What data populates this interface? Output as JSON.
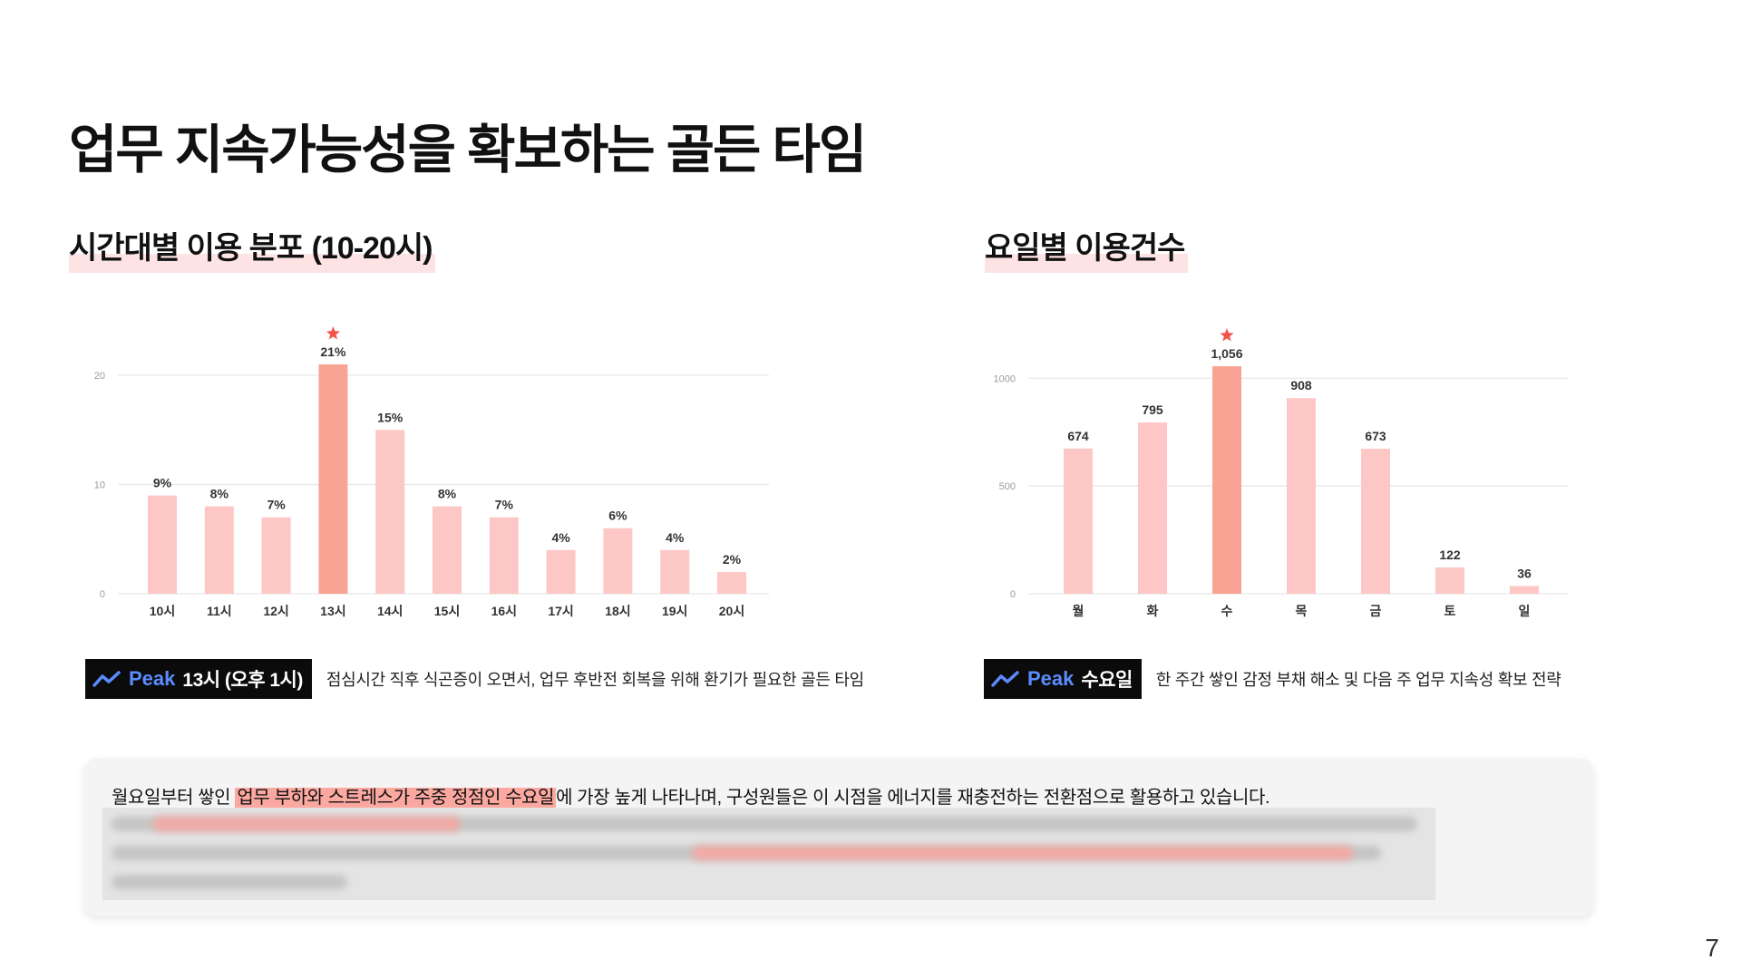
{
  "page": {
    "title": "업무 지속가능성을 확보하는 골든 타임",
    "number": "7"
  },
  "chart_data": [
    {
      "type": "bar",
      "title": "시간대별 이용 분포 (10-20시)",
      "categories": [
        "10시",
        "11시",
        "12시",
        "13시",
        "14시",
        "15시",
        "16시",
        "17시",
        "18시",
        "19시",
        "20시"
      ],
      "values": [
        9,
        8,
        7,
        21,
        15,
        8,
        7,
        4,
        6,
        4,
        2
      ],
      "data_labels": [
        "9%",
        "8%",
        "7%",
        "21%",
        "15%",
        "8%",
        "7%",
        "4%",
        "6%",
        "4%",
        "2%"
      ],
      "highlight_index": 3,
      "ylim": [
        0,
        21
      ],
      "yticks": [
        "0",
        "10",
        "20"
      ],
      "ytick_values": [
        0,
        10,
        20
      ],
      "grid": true,
      "bar_color": "#fdc7c5",
      "highlight_color": "#f9a395",
      "star_color": "#f4524a"
    },
    {
      "type": "bar",
      "title": "요일별 이용건수",
      "categories": [
        "월",
        "화",
        "수",
        "목",
        "금",
        "토",
        "일"
      ],
      "values": [
        674,
        795,
        1056,
        908,
        673,
        122,
        36
      ],
      "data_labels": [
        "674",
        "795",
        "1,056",
        "908",
        "673",
        "122",
        "36"
      ],
      "highlight_index": 2,
      "ylim": [
        0,
        1056
      ],
      "yticks": [
        "0",
        "500",
        "1000"
      ],
      "ytick_values": [
        0,
        500,
        1000
      ],
      "grid": true,
      "bar_color": "#fdc7c5",
      "highlight_color": "#f9a395",
      "star_color": "#f4524a"
    }
  ],
  "peaks": {
    "left": {
      "icon": "trend-up-icon",
      "word": "Peak",
      "value": "13시 (오후 1시)",
      "description": "점심시간 직후 식곤증이 오면서, 업무 후반전 회복을 위해 환기가 필요한 골든 타임"
    },
    "right": {
      "icon": "trend-up-icon",
      "word": "Peak",
      "value": "수요일",
      "description": "한 주간 쌓인 감정 부채 해소 및 다음 주 업무 지속성 확보 전략"
    }
  },
  "summary": {
    "before": "월요일부터 쌓인 ",
    "highlight": "업무 부하와 스트레스가 주중 정점인 수요일",
    "after": "에 가장 높게 나타나며, 구성원들은 이 시점을 에너지를 재충전하는 전환점으로 활용하고 있습니다."
  },
  "colors": {
    "accent_pink": "#fba8a0",
    "peak_blue": "#5b8cff",
    "badge_bg": "#0b0b0b"
  }
}
